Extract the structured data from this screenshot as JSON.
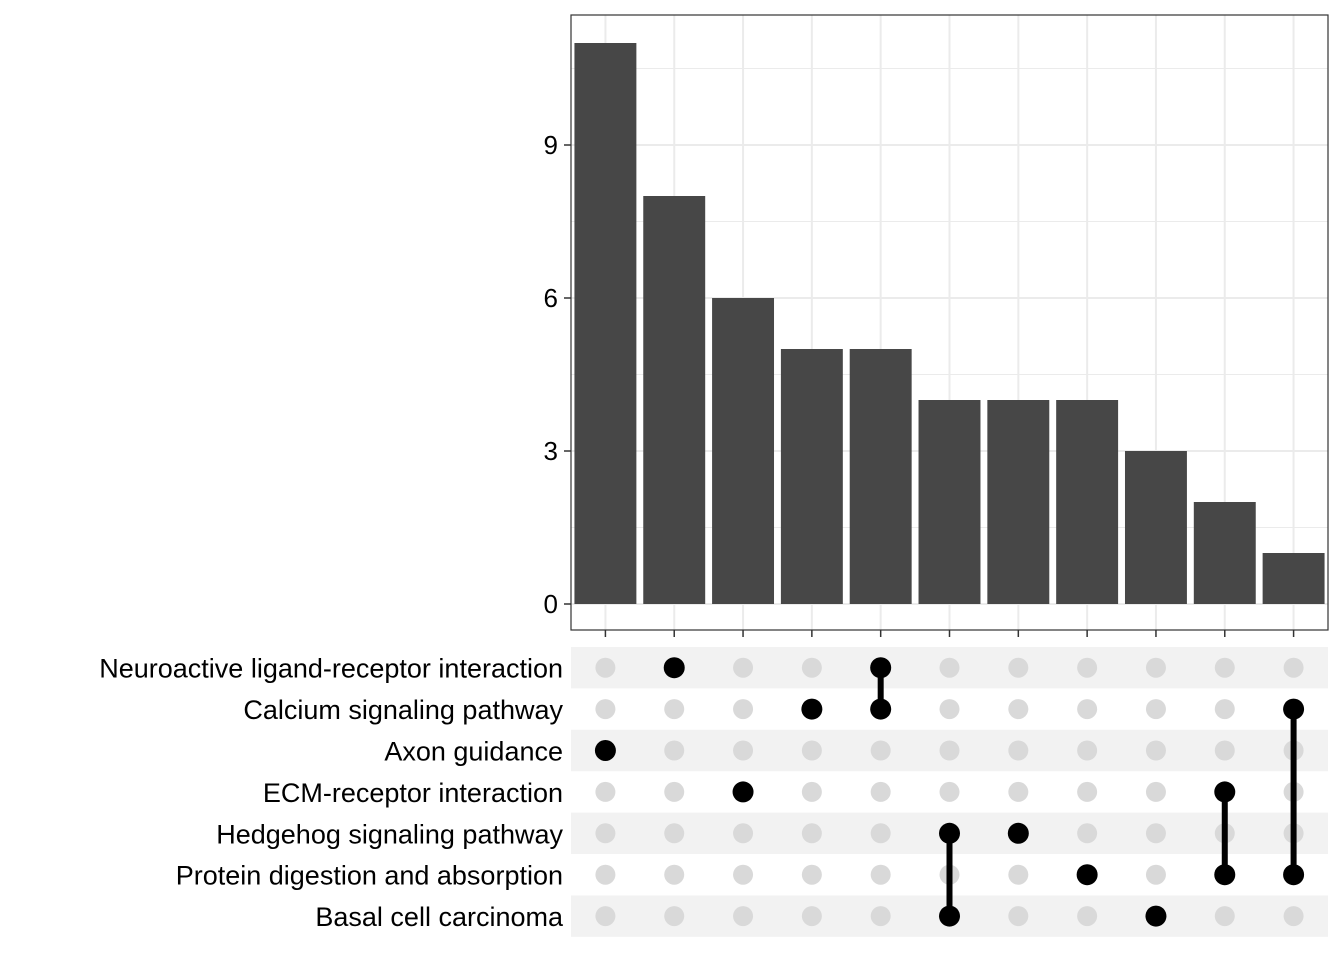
{
  "chart_data": {
    "type": "bar",
    "subtype": "upset",
    "title": "",
    "xlabel": "",
    "ylabel": "",
    "ylim": [
      0,
      11.5
    ],
    "yticks": [
      0,
      3,
      6,
      9
    ],
    "grid": true,
    "sets": [
      "Neuroactive ligand-receptor interaction",
      "Calcium signaling pathway",
      "Axon guidance",
      "ECM-receptor interaction",
      "Hedgehog signaling pathway",
      "Protein digestion and absorption",
      "Basal cell carcinoma"
    ],
    "intersections": [
      {
        "sets": [
          "Axon guidance"
        ],
        "value": 11
      },
      {
        "sets": [
          "Neuroactive ligand-receptor interaction"
        ],
        "value": 8
      },
      {
        "sets": [
          "ECM-receptor interaction"
        ],
        "value": 6
      },
      {
        "sets": [
          "Calcium signaling pathway"
        ],
        "value": 5
      },
      {
        "sets": [
          "Neuroactive ligand-receptor interaction",
          "Calcium signaling pathway"
        ],
        "value": 5
      },
      {
        "sets": [
          "Hedgehog signaling pathway",
          "Basal cell carcinoma"
        ],
        "value": 4
      },
      {
        "sets": [
          "Hedgehog signaling pathway"
        ],
        "value": 4
      },
      {
        "sets": [
          "Protein digestion and absorption"
        ],
        "value": 4
      },
      {
        "sets": [
          "Basal cell carcinoma"
        ],
        "value": 3
      },
      {
        "sets": [
          "ECM-receptor interaction",
          "Protein digestion and absorption"
        ],
        "value": 2
      },
      {
        "sets": [
          "Calcium signaling pathway",
          "Protein digestion and absorption"
        ],
        "value": 1
      }
    ],
    "colors": {
      "bar": "#474747",
      "dot_on": "#000000",
      "dot_off": "#d9d9d9",
      "band": "#f2f2f2",
      "grid": "#ebebeb"
    }
  }
}
